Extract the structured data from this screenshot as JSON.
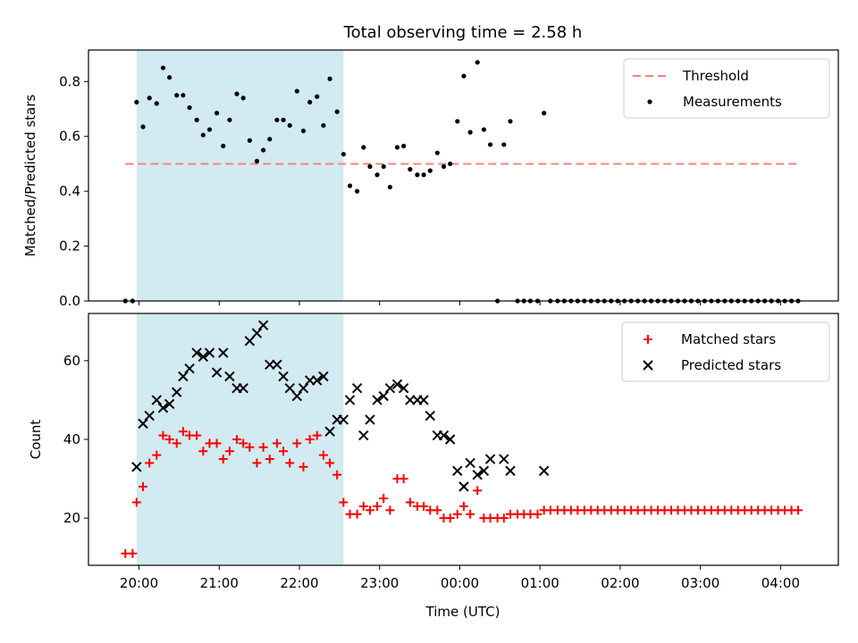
{
  "figure": {
    "title": "Total observing time = 2.58 h",
    "xlabel": "Time (UTC)",
    "xticks": [
      "20:00",
      "21:00",
      "22:00",
      "23:00",
      "00:00",
      "01:00",
      "02:00",
      "03:00",
      "04:00"
    ]
  },
  "colors": {
    "shade": "#add8e6",
    "threshold": "#ff7f7f",
    "measurement": "#000000",
    "matched": "#ff0000",
    "predicted": "#000000"
  },
  "chart_data": [
    {
      "type": "scatter",
      "ylabel": "Matched/Predicted stars",
      "xlim": [
        19.37,
        28.72
      ],
      "ylim": [
        0.0,
        0.915
      ],
      "yticks": [
        "0.0",
        "0.2",
        "0.4",
        "0.6",
        "0.8"
      ],
      "shaded_interval": [
        19.97,
        22.55
      ],
      "legend": [
        "Threshold",
        "Measurements"
      ],
      "legend_position": "upper right",
      "threshold": {
        "name": "Threshold",
        "value": 0.5,
        "x": [
          19.83,
          28.25
        ]
      },
      "series": [
        {
          "name": "Measurements",
          "points": [
            [
              19.83,
              0.0
            ],
            [
              19.92,
              0.0
            ],
            [
              19.97,
              0.725
            ],
            [
              20.05,
              0.635
            ],
            [
              20.13,
              0.74
            ],
            [
              20.22,
              0.72
            ],
            [
              20.3,
              0.85
            ],
            [
              20.38,
              0.815
            ],
            [
              20.47,
              0.75
            ],
            [
              20.55,
              0.75
            ],
            [
              20.63,
              0.705
            ],
            [
              20.72,
              0.66
            ],
            [
              20.8,
              0.605
            ],
            [
              20.88,
              0.625
            ],
            [
              20.97,
              0.685
            ],
            [
              21.05,
              0.565
            ],
            [
              21.13,
              0.66
            ],
            [
              21.22,
              0.755
            ],
            [
              21.3,
              0.74
            ],
            [
              21.38,
              0.585
            ],
            [
              21.47,
              0.51
            ],
            [
              21.55,
              0.55
            ],
            [
              21.63,
              0.59
            ],
            [
              21.72,
              0.66
            ],
            [
              21.8,
              0.66
            ],
            [
              21.88,
              0.64
            ],
            [
              21.97,
              0.765
            ],
            [
              22.05,
              0.62
            ],
            [
              22.13,
              0.725
            ],
            [
              22.22,
              0.745
            ],
            [
              22.3,
              0.64
            ],
            [
              22.38,
              0.81
            ],
            [
              22.47,
              0.69
            ],
            [
              22.55,
              0.535
            ],
            [
              22.63,
              0.42
            ],
            [
              22.72,
              0.4
            ],
            [
              22.8,
              0.56
            ],
            [
              22.88,
              0.49
            ],
            [
              22.97,
              0.46
            ],
            [
              23.05,
              0.49
            ],
            [
              23.13,
              0.415
            ],
            [
              23.22,
              0.56
            ],
            [
              23.3,
              0.565
            ],
            [
              23.38,
              0.48
            ],
            [
              23.47,
              0.46
            ],
            [
              23.55,
              0.46
            ],
            [
              23.63,
              0.475
            ],
            [
              23.72,
              0.54
            ],
            [
              23.8,
              0.49
            ],
            [
              23.88,
              0.5
            ],
            [
              23.97,
              0.655
            ],
            [
              24.05,
              0.82
            ],
            [
              24.13,
              0.615
            ],
            [
              24.22,
              0.87
            ],
            [
              24.3,
              0.625
            ],
            [
              24.38,
              0.57
            ],
            [
              24.47,
              0.0
            ],
            [
              24.55,
              0.57
            ],
            [
              24.63,
              0.655
            ],
            [
              24.72,
              0.0
            ],
            [
              24.8,
              0.0
            ],
            [
              24.88,
              0.0
            ],
            [
              24.97,
              0.0
            ],
            [
              25.05,
              0.685
            ],
            [
              25.13,
              0.0
            ]
          ],
          "zero_run": {
            "from": 25.22,
            "to": 28.22,
            "step": 0.0833,
            "value": 0.0
          }
        }
      ]
    },
    {
      "type": "scatter",
      "ylabel": "Count",
      "xlim": [
        19.37,
        28.72
      ],
      "ylim": [
        8,
        72
      ],
      "yticks": [
        "20",
        "40",
        "60"
      ],
      "shaded_interval": [
        19.97,
        22.55
      ],
      "legend": [
        "Matched stars",
        "Predicted stars"
      ],
      "legend_position": "upper right",
      "series": [
        {
          "name": "Matched stars",
          "points": [
            [
              19.83,
              11
            ],
            [
              19.92,
              11
            ],
            [
              19.97,
              24
            ],
            [
              20.05,
              28
            ],
            [
              20.13,
              34
            ],
            [
              20.22,
              36
            ],
            [
              20.3,
              41
            ],
            [
              20.38,
              40
            ],
            [
              20.47,
              39
            ],
            [
              20.55,
              42
            ],
            [
              20.63,
              41
            ],
            [
              20.72,
              41
            ],
            [
              20.8,
              37
            ],
            [
              20.88,
              39
            ],
            [
              20.97,
              39
            ],
            [
              21.05,
              35
            ],
            [
              21.13,
              37
            ],
            [
              21.22,
              40
            ],
            [
              21.3,
              39
            ],
            [
              21.38,
              38
            ],
            [
              21.47,
              34
            ],
            [
              21.55,
              38
            ],
            [
              21.63,
              35
            ],
            [
              21.72,
              39
            ],
            [
              21.8,
              37
            ],
            [
              21.88,
              34
            ],
            [
              21.97,
              39
            ],
            [
              22.05,
              33
            ],
            [
              22.13,
              40
            ],
            [
              22.22,
              41
            ],
            [
              22.3,
              36
            ],
            [
              22.38,
              34
            ],
            [
              22.47,
              31
            ],
            [
              22.55,
              24
            ],
            [
              22.63,
              21
            ],
            [
              22.72,
              21
            ],
            [
              22.8,
              23
            ],
            [
              22.88,
              22
            ],
            [
              22.97,
              23
            ],
            [
              23.05,
              25
            ],
            [
              23.13,
              22
            ],
            [
              23.22,
              30
            ],
            [
              23.3,
              30
            ],
            [
              23.38,
              24
            ],
            [
              23.47,
              23
            ],
            [
              23.55,
              23
            ],
            [
              23.63,
              22
            ],
            [
              23.72,
              22
            ],
            [
              23.8,
              20
            ],
            [
              23.88,
              20
            ],
            [
              23.97,
              21
            ],
            [
              24.05,
              23
            ],
            [
              24.13,
              21
            ],
            [
              24.22,
              27
            ],
            [
              24.3,
              20
            ],
            [
              24.38,
              20
            ],
            [
              24.47,
              20
            ],
            [
              24.55,
              20
            ],
            [
              24.63,
              21
            ],
            [
              24.72,
              21
            ],
            [
              24.8,
              21
            ],
            [
              24.88,
              21
            ],
            [
              24.97,
              21
            ],
            [
              25.05,
              22
            ],
            [
              25.13,
              22
            ]
          ],
          "constant_run": {
            "from": 25.22,
            "to": 28.3,
            "step": 0.0833,
            "value": 22
          }
        },
        {
          "name": "Predicted stars",
          "points": [
            [
              19.97,
              33
            ],
            [
              20.05,
              44
            ],
            [
              20.13,
              46
            ],
            [
              20.22,
              50
            ],
            [
              20.3,
              48
            ],
            [
              20.38,
              49
            ],
            [
              20.47,
              52
            ],
            [
              20.55,
              56
            ],
            [
              20.63,
              58
            ],
            [
              20.72,
              62
            ],
            [
              20.8,
              61
            ],
            [
              20.88,
              62
            ],
            [
              20.97,
              57
            ],
            [
              21.05,
              62
            ],
            [
              21.13,
              56
            ],
            [
              21.22,
              53
            ],
            [
              21.3,
              53
            ],
            [
              21.38,
              65
            ],
            [
              21.47,
              67
            ],
            [
              21.55,
              69
            ],
            [
              21.63,
              59
            ],
            [
              21.72,
              59
            ],
            [
              21.8,
              56
            ],
            [
              21.88,
              53
            ],
            [
              21.97,
              51
            ],
            [
              22.05,
              53
            ],
            [
              22.13,
              55
            ],
            [
              22.22,
              55
            ],
            [
              22.3,
              56
            ],
            [
              22.38,
              42
            ],
            [
              22.47,
              45
            ],
            [
              22.55,
              45
            ],
            [
              22.63,
              50
            ],
            [
              22.72,
              53
            ],
            [
              22.8,
              41
            ],
            [
              22.88,
              45
            ],
            [
              22.97,
              50
            ],
            [
              23.05,
              51
            ],
            [
              23.13,
              53
            ],
            [
              23.22,
              54
            ],
            [
              23.3,
              53
            ],
            [
              23.38,
              50
            ],
            [
              23.47,
              50
            ],
            [
              23.55,
              50
            ],
            [
              23.63,
              46
            ],
            [
              23.72,
              41
            ],
            [
              23.8,
              41
            ],
            [
              23.88,
              40
            ],
            [
              23.97,
              32
            ],
            [
              24.05,
              28
            ],
            [
              24.13,
              34
            ],
            [
              24.22,
              31
            ],
            [
              24.3,
              32
            ],
            [
              24.38,
              35
            ],
            [
              24.55,
              35
            ],
            [
              24.63,
              32
            ],
            [
              25.05,
              32
            ]
          ]
        }
      ]
    }
  ]
}
